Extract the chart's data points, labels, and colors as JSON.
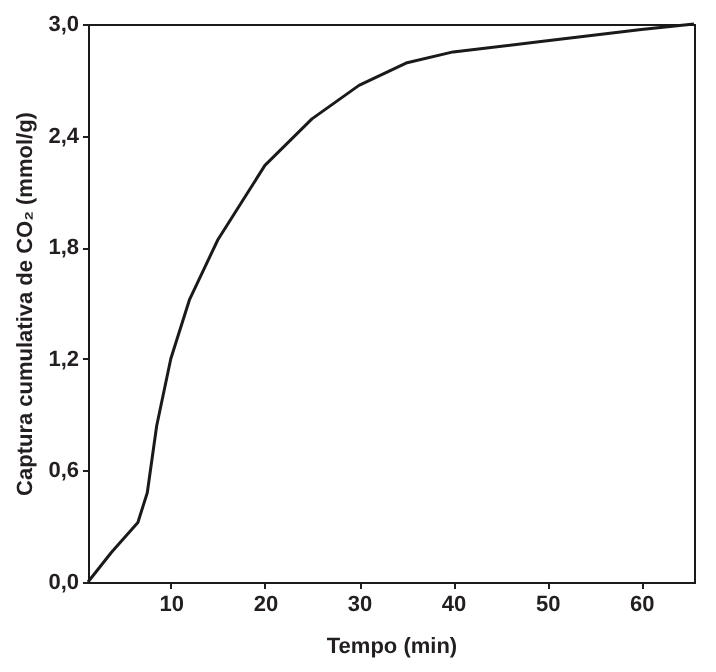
{
  "chart_data": {
    "type": "line",
    "xlabel": "Tempo (min)",
    "ylabel": "Captura cumulativa de CO₂ (mmol/g)",
    "xlim": [
      1.2,
      65.6
    ],
    "xticks": [
      10,
      20,
      30,
      40,
      50,
      60
    ],
    "ylim": [
      0,
      3
    ],
    "yticks": [
      {
        "value": 0,
        "label": "0,0"
      },
      {
        "value": 0.6,
        "label": "0,6"
      },
      {
        "value": 1.2,
        "label": "1,2"
      },
      {
        "value": 1.8,
        "label": "1,8"
      },
      {
        "value": 2.4,
        "label": "2,4"
      },
      {
        "value": 3,
        "label": "3,0"
      }
    ],
    "grid": false,
    "marker": "none",
    "line_style": "solid",
    "series": [
      {
        "color": "#1a1a1a",
        "x": [
          1.2,
          3.7,
          6.5,
          7.5,
          8.5,
          10,
          12,
          15,
          20,
          25,
          30,
          35,
          40,
          50,
          60,
          65.6
        ],
        "values": [
          0,
          0.16,
          0.32,
          0.48,
          0.84,
          1.2,
          1.52,
          1.84,
          2.24,
          2.49,
          2.67,
          2.79,
          2.85,
          2.91,
          2.97,
          3.0
        ]
      }
    ]
  }
}
